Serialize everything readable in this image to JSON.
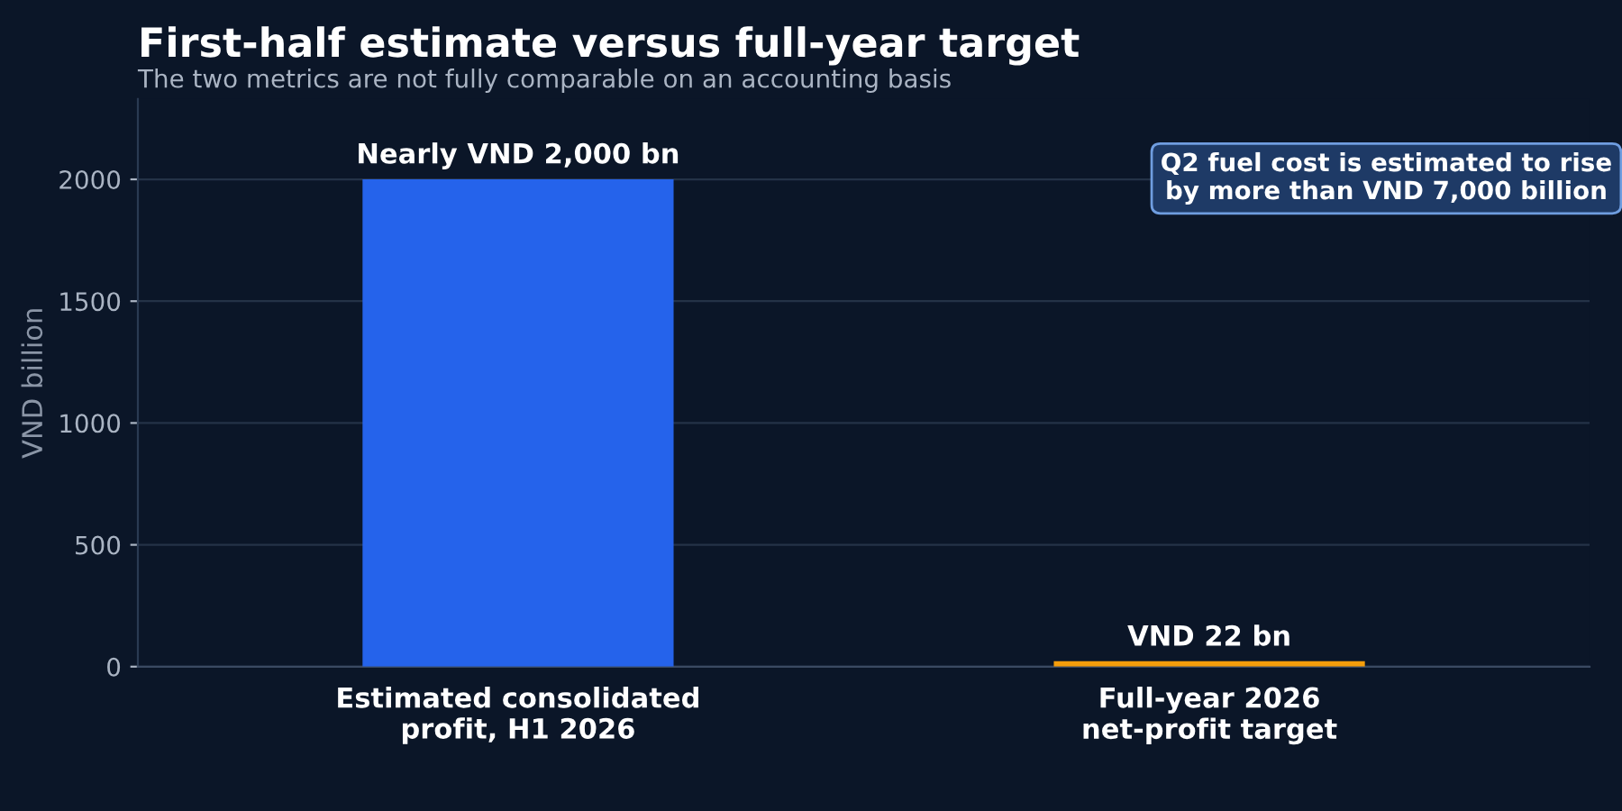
{
  "chart_data": {
    "type": "bar",
    "title": "First-half estimate versus full-year target",
    "subtitle": "The two metrics are not fully comparable on an accounting basis",
    "ylabel": "VND billion",
    "categories": [
      "Estimated consolidated\nprofit, H1 2026",
      "Full-year 2026\nnet-profit target"
    ],
    "values": [
      2000,
      22
    ],
    "colors": [
      "#2563eb",
      "#f59e0b"
    ],
    "value_labels": [
      "Nearly VND 2,000 bn",
      "VND 22 bn"
    ],
    "annotations": [
      "Q2 fuel cost is estimated to rise\nby more than VND 7,000 billion"
    ],
    "ylim": [
      0,
      2330
    ],
    "yticks": [
      0,
      500,
      1000,
      1500,
      2000
    ],
    "grid": "y"
  }
}
